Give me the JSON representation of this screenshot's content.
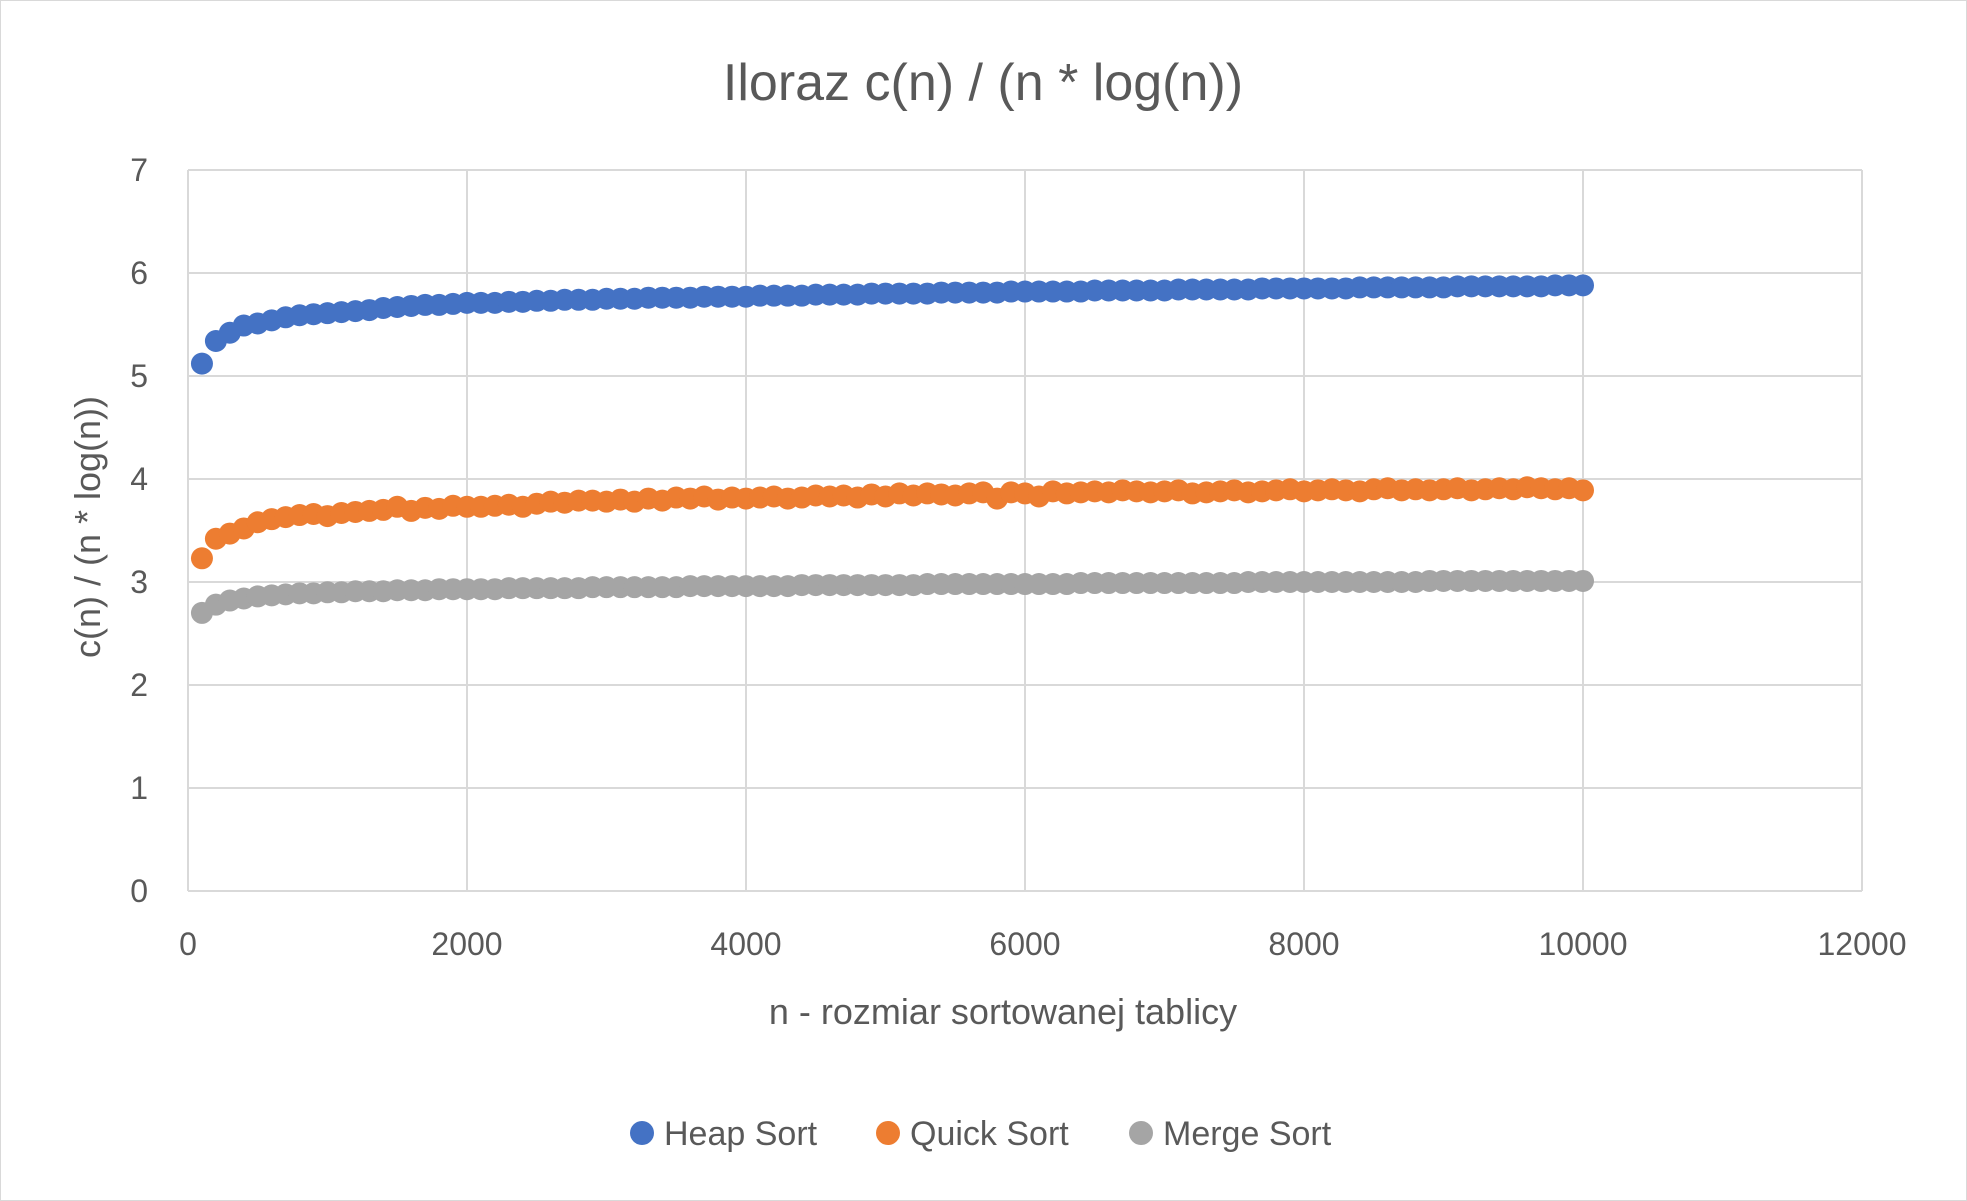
{
  "chart_data": {
    "type": "scatter",
    "title": "Iloraz c(n) / (n * log(n))",
    "xlabel": "n - rozmiar sortowanej tablicy",
    "ylabel": "c(n) / (n * log(n))",
    "xlim": [
      0,
      12000
    ],
    "ylim": [
      0,
      7
    ],
    "xticks": [
      "0",
      "2000",
      "4000",
      "6000",
      "8000",
      "10000",
      "12000"
    ],
    "yticks": [
      "0",
      "1",
      "2",
      "3",
      "4",
      "5",
      "6",
      "7"
    ],
    "grid": true,
    "legend_position": "bottom",
    "x": {
      "start": 100,
      "step": 100,
      "count": 100
    },
    "series": [
      {
        "name": "Heap Sort",
        "color": "#4472C4",
        "values": [
          5.12,
          5.34,
          5.42,
          5.49,
          5.51,
          5.54,
          5.57,
          5.59,
          5.6,
          5.61,
          5.62,
          5.63,
          5.64,
          5.66,
          5.67,
          5.68,
          5.69,
          5.69,
          5.7,
          5.71,
          5.71,
          5.71,
          5.72,
          5.72,
          5.73,
          5.73,
          5.74,
          5.74,
          5.74,
          5.75,
          5.75,
          5.75,
          5.76,
          5.76,
          5.76,
          5.76,
          5.77,
          5.77,
          5.77,
          5.77,
          5.78,
          5.78,
          5.78,
          5.78,
          5.79,
          5.79,
          5.79,
          5.79,
          5.8,
          5.8,
          5.8,
          5.8,
          5.8,
          5.81,
          5.81,
          5.81,
          5.81,
          5.81,
          5.82,
          5.82,
          5.82,
          5.82,
          5.82,
          5.82,
          5.83,
          5.83,
          5.83,
          5.83,
          5.83,
          5.83,
          5.84,
          5.84,
          5.84,
          5.84,
          5.84,
          5.84,
          5.85,
          5.85,
          5.85,
          5.85,
          5.85,
          5.85,
          5.85,
          5.86,
          5.86,
          5.86,
          5.86,
          5.86,
          5.86,
          5.86,
          5.87,
          5.87,
          5.87,
          5.87,
          5.87,
          5.87,
          5.87,
          5.88,
          5.88,
          5.88
        ]
      },
      {
        "name": "Quick Sort",
        "color": "#ED7D31",
        "values": [
          3.23,
          3.42,
          3.47,
          3.52,
          3.58,
          3.61,
          3.63,
          3.65,
          3.66,
          3.64,
          3.67,
          3.68,
          3.69,
          3.7,
          3.73,
          3.69,
          3.72,
          3.71,
          3.74,
          3.73,
          3.73,
          3.74,
          3.75,
          3.73,
          3.76,
          3.78,
          3.77,
          3.79,
          3.79,
          3.78,
          3.8,
          3.78,
          3.81,
          3.79,
          3.82,
          3.81,
          3.83,
          3.8,
          3.82,
          3.81,
          3.82,
          3.83,
          3.81,
          3.82,
          3.84,
          3.83,
          3.84,
          3.82,
          3.85,
          3.83,
          3.86,
          3.84,
          3.86,
          3.85,
          3.84,
          3.86,
          3.87,
          3.81,
          3.87,
          3.86,
          3.83,
          3.88,
          3.86,
          3.87,
          3.88,
          3.87,
          3.89,
          3.88,
          3.87,
          3.88,
          3.89,
          3.86,
          3.87,
          3.88,
          3.89,
          3.87,
          3.88,
          3.89,
          3.9,
          3.88,
          3.89,
          3.9,
          3.89,
          3.88,
          3.9,
          3.91,
          3.89,
          3.9,
          3.89,
          3.9,
          3.91,
          3.89,
          3.9,
          3.91,
          3.9,
          3.92,
          3.91,
          3.9,
          3.91,
          3.89
        ]
      },
      {
        "name": "Merge Sort",
        "color": "#A5A5A5",
        "values": [
          2.7,
          2.78,
          2.82,
          2.84,
          2.86,
          2.87,
          2.88,
          2.89,
          2.89,
          2.9,
          2.9,
          2.91,
          2.91,
          2.91,
          2.92,
          2.92,
          2.92,
          2.93,
          2.93,
          2.93,
          2.93,
          2.93,
          2.94,
          2.94,
          2.94,
          2.94,
          2.94,
          2.94,
          2.95,
          2.95,
          2.95,
          2.95,
          2.95,
          2.95,
          2.95,
          2.96,
          2.96,
          2.96,
          2.96,
          2.96,
          2.96,
          2.96,
          2.96,
          2.97,
          2.97,
          2.97,
          2.97,
          2.97,
          2.97,
          2.97,
          2.97,
          2.97,
          2.98,
          2.98,
          2.98,
          2.98,
          2.98,
          2.98,
          2.98,
          2.98,
          2.98,
          2.98,
          2.98,
          2.99,
          2.99,
          2.99,
          2.99,
          2.99,
          2.99,
          2.99,
          2.99,
          2.99,
          2.99,
          2.99,
          2.99,
          3.0,
          3.0,
          3.0,
          3.0,
          3.0,
          3.0,
          3.0,
          3.0,
          3.0,
          3.0,
          3.0,
          3.0,
          3.0,
          3.01,
          3.01,
          3.01,
          3.01,
          3.01,
          3.01,
          3.01,
          3.01,
          3.01,
          3.01,
          3.01,
          3.01
        ]
      }
    ]
  }
}
